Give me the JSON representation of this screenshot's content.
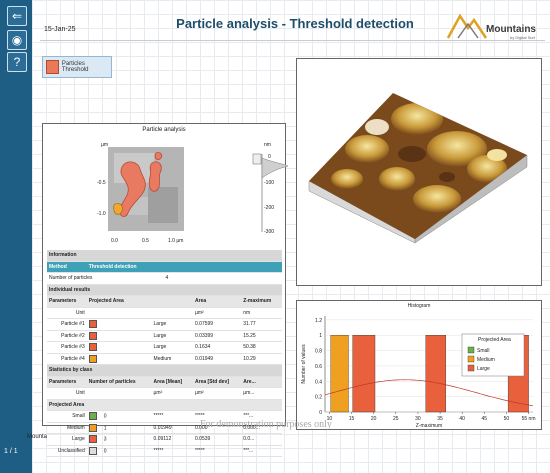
{
  "date": "15-Jan-25",
  "title": "Particle analysis - Threshold detection",
  "logo": {
    "text": "Mountains",
    "subtext": "by Digital Surf"
  },
  "sidebar": {
    "pages": "1 / 1",
    "name": "Mounta"
  },
  "operator_button": "Particles Threshold",
  "particle_panel": {
    "title": "Particle analysis",
    "y_unit": "µm",
    "y_ticks": [
      "-0.5",
      "-1.0"
    ],
    "x_ticks": [
      "0.0",
      "0.5",
      "1.0 µm"
    ],
    "scale_unit": "nm",
    "scale_ticks": [
      "0",
      "-100",
      "-200",
      "-300"
    ]
  },
  "table": {
    "info_header": "Information",
    "method_label": "Method",
    "method_value": "Threshold detection",
    "nparticles_label": "Number of particles",
    "nparticles_value": "4",
    "indiv_header": "Individual results",
    "cols": [
      "Parameters",
      "Projected Area",
      "Area",
      "Z-maximum"
    ],
    "unit_label": "Unit",
    "units": [
      "µm²",
      "nm"
    ],
    "particles": [
      {
        "name": "Particle #1",
        "cls": "Large",
        "color": "#e8603c",
        "area": "0.07599",
        "zmax": "31.77"
      },
      {
        "name": "Particle #2",
        "cls": "Large",
        "color": "#e8603c",
        "area": "0.03399",
        "zmax": "15.25"
      },
      {
        "name": "Particle #3",
        "cls": "Large",
        "color": "#e8603c",
        "area": "0.1634",
        "zmax": "50.38"
      },
      {
        "name": "Particle #4",
        "cls": "Medium",
        "color": "#f0a020",
        "area": "0.01949",
        "zmax": "10.29"
      }
    ],
    "stats_header": "Statistics by class",
    "stats_cols": [
      "Parameters",
      "Number of particles",
      "Area [Mean]",
      "Area [Std dev]",
      "Are..."
    ],
    "stats_units": [
      "µm²",
      "µm²",
      "µm..."
    ],
    "proj_header": "Projected Area",
    "classes": [
      {
        "name": "Small",
        "color": "#6ab04c",
        "n": "0",
        "mean": "*****",
        "std": "*****",
        "more": "***..."
      },
      {
        "name": "Medium",
        "color": "#f0a020",
        "n": "1",
        "mean": "0.01949",
        "std": "0.000",
        "more": "0.000..."
      },
      {
        "name": "Large",
        "color": "#e8603c",
        "n": "3",
        "mean": "0.09112",
        "std": "0.0539",
        "more": "0.0..."
      },
      {
        "name": "Unclassified",
        "color": "#dddddd",
        "n": "0",
        "mean": "*****",
        "std": "*****",
        "more": "***..."
      }
    ]
  },
  "watermark": "For demonstration purposes only",
  "chart_data": {
    "type": "bar",
    "title": "Histogram",
    "xlabel": "Z-maximum",
    "ylabel": "Number of values",
    "x_ticks": [
      "10",
      "15",
      "20",
      "25",
      "30",
      "35",
      "40",
      "45",
      "50",
      "55 nm"
    ],
    "y_ticks": [
      "0",
      "0.2",
      "0.4",
      "0.6",
      "0.8",
      "1",
      "1.2"
    ],
    "xlim": [
      9,
      56
    ],
    "ylim": [
      0,
      1.25
    ],
    "bars": [
      {
        "x0": 10.29,
        "x1": 14.3,
        "value": 1,
        "color": "#f0a020"
      },
      {
        "x0": 15.25,
        "x1": 20.3,
        "value": 1,
        "color": "#e8603c"
      },
      {
        "x0": 31.77,
        "x1": 36.3,
        "value": 1,
        "color": "#e8603c"
      },
      {
        "x0": 50.38,
        "x1": 55.0,
        "value": 1,
        "color": "#e8603c"
      }
    ],
    "legend": {
      "title": "Projected Area",
      "items": [
        {
          "name": "Small",
          "color": "#6ab04c"
        },
        {
          "name": "Medium",
          "color": "#f0a020"
        },
        {
          "name": "Large",
          "color": "#e8603c"
        }
      ],
      "position": "top-right"
    }
  }
}
